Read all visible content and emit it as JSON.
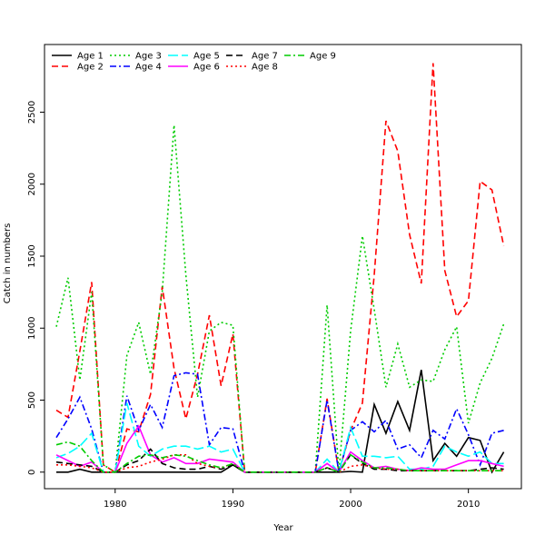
{
  "chart_data": {
    "type": "line",
    "title": "",
    "xlabel": "Year",
    "ylabel": "Catch in numbers",
    "xlim": [
      1974,
      2014.5
    ],
    "ylim": [
      -115,
      2970
    ],
    "xticks": [
      1980,
      1990,
      2000,
      2010
    ],
    "yticks": [
      0,
      500,
      1000,
      1500,
      2000,
      2500
    ],
    "legend_position": "top-left",
    "grid": false,
    "x": [
      1975,
      1976,
      1977,
      1978,
      1979,
      1980,
      1981,
      1982,
      1983,
      1984,
      1985,
      1986,
      1987,
      1988,
      1989,
      1990,
      1991,
      1992,
      1993,
      1994,
      1995,
      1996,
      1997,
      1998,
      1999,
      2000,
      2001,
      2002,
      2003,
      2004,
      2005,
      2006,
      2007,
      2008,
      2009,
      2010,
      2011,
      2012,
      2013
    ],
    "series": [
      {
        "name": "Age 1",
        "color": "#000000",
        "dash": "solid",
        "values": [
          0,
          0,
          20,
          0,
          0,
          0,
          0,
          0,
          0,
          0,
          0,
          0,
          0,
          0,
          0,
          50,
          0,
          0,
          0,
          0,
          0,
          0,
          0,
          0,
          0,
          5,
          0,
          470,
          270,
          490,
          290,
          710,
          80,
          200,
          110,
          240,
          220,
          0,
          140
        ]
      },
      {
        "name": "Age 2",
        "color": "#ff0000",
        "dash": "dashed",
        "values": [
          430,
          380,
          840,
          1320,
          50,
          0,
          300,
          280,
          540,
          1290,
          720,
          370,
          680,
          1090,
          600,
          960,
          0,
          0,
          0,
          0,
          0,
          0,
          0,
          510,
          0,
          290,
          480,
          1370,
          2440,
          2230,
          1650,
          1310,
          2840,
          1400,
          1080,
          1190,
          2020,
          1960,
          1570
        ]
      },
      {
        "name": "Age 3",
        "color": "#00cc00",
        "dash": "dotted",
        "values": [
          1010,
          1350,
          640,
          1250,
          50,
          0,
          810,
          1040,
          680,
          1250,
          2410,
          1370,
          520,
          980,
          1040,
          1020,
          0,
          0,
          0,
          0,
          0,
          0,
          0,
          1160,
          0,
          980,
          1640,
          1130,
          590,
          890,
          590,
          640,
          630,
          850,
          1010,
          340,
          620,
          790,
          1030
        ]
      },
      {
        "name": "Age 4",
        "color": "#0000ff",
        "dash": "dashdot",
        "values": [
          240,
          370,
          520,
          300,
          0,
          0,
          530,
          290,
          470,
          310,
          670,
          690,
          680,
          190,
          310,
          300,
          0,
          0,
          0,
          0,
          0,
          0,
          0,
          500,
          0,
          290,
          350,
          280,
          360,
          160,
          190,
          100,
          290,
          230,
          440,
          260,
          50,
          270,
          290
        ]
      },
      {
        "name": "Age 5",
        "color": "#00ffff",
        "dash": "longdash",
        "values": [
          100,
          130,
          180,
          270,
          0,
          0,
          480,
          180,
          110,
          160,
          180,
          180,
          160,
          180,
          140,
          160,
          0,
          0,
          0,
          0,
          0,
          0,
          0,
          90,
          0,
          310,
          110,
          110,
          100,
          110,
          20,
          20,
          40,
          180,
          140,
          110,
          140,
          60,
          60
        ]
      },
      {
        "name": "Age 6",
        "color": "#ff00ff",
        "dash": "solid",
        "values": [
          120,
          80,
          40,
          70,
          0,
          0,
          200,
          320,
          120,
          70,
          100,
          60,
          60,
          90,
          80,
          70,
          0,
          0,
          0,
          0,
          0,
          0,
          0,
          60,
          0,
          140,
          80,
          30,
          40,
          20,
          10,
          30,
          20,
          20,
          50,
          80,
          80,
          60,
          40
        ]
      },
      {
        "name": "Age 7",
        "color": "#000000",
        "dash": "dashed",
        "values": [
          70,
          60,
          50,
          40,
          0,
          0,
          50,
          80,
          160,
          60,
          30,
          20,
          20,
          40,
          20,
          50,
          0,
          0,
          0,
          0,
          0,
          0,
          0,
          30,
          0,
          120,
          60,
          20,
          20,
          10,
          10,
          10,
          10,
          10,
          10,
          10,
          20,
          30,
          20
        ]
      },
      {
        "name": "Age 8",
        "color": "#ff0000",
        "dash": "dotted",
        "values": [
          50,
          50,
          40,
          30,
          0,
          0,
          30,
          40,
          70,
          90,
          120,
          120,
          60,
          40,
          30,
          60,
          0,
          0,
          0,
          0,
          0,
          0,
          0,
          30,
          0,
          40,
          50,
          30,
          20,
          20,
          10,
          10,
          10,
          10,
          10,
          10,
          10,
          10,
          10
        ]
      },
      {
        "name": "Age 9",
        "color": "#00cc00",
        "dash": "dashdot",
        "values": [
          190,
          210,
          180,
          80,
          0,
          0,
          60,
          110,
          120,
          100,
          120,
          110,
          80,
          50,
          30,
          60,
          0,
          0,
          0,
          0,
          0,
          0,
          0,
          30,
          0,
          120,
          70,
          30,
          30,
          20,
          10,
          10,
          10,
          10,
          10,
          10,
          10,
          10,
          10
        ]
      }
    ]
  }
}
